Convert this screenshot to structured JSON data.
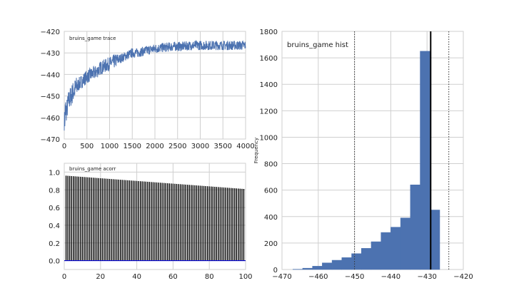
{
  "chart_data": [
    {
      "type": "line",
      "title": "bruins_game trace",
      "xlim": [
        0,
        4000
      ],
      "ylim": [
        -470,
        -420
      ],
      "grid": true,
      "x_ticks": [
        0,
        500,
        1000,
        1500,
        2000,
        2500,
        3000,
        3500,
        4000
      ],
      "y_ticks": [
        -420,
        -430,
        -440,
        -450,
        -460,
        -470
      ],
      "series": [
        {
          "values_x": [
            0,
            50,
            100,
            200,
            300,
            400,
            500,
            600,
            700,
            800,
            900,
            1000,
            1100,
            1200,
            1300,
            1400,
            1500,
            1600,
            1700,
            1800,
            1900,
            2000,
            2200,
            2400,
            2600,
            2800,
            3000,
            3200,
            3400,
            3600,
            3800,
            4000
          ],
          "values_y": [
            -455,
            -457,
            -452,
            -448,
            -445,
            -443,
            -441,
            -440,
            -439,
            -437,
            -436,
            -435,
            -434,
            -433,
            -432,
            -431,
            -430,
            -430,
            -429.5,
            -429,
            -428.5,
            -428,
            -427.5,
            -427,
            -427,
            -426.5,
            -426.5,
            -426.5,
            -426.5,
            -426.5,
            -426.5,
            -426.5
          ]
        }
      ],
      "color": "#4c72b0"
    },
    {
      "type": "bar",
      "title": "bruins_game acorr",
      "xlim": [
        0,
        100
      ],
      "ylim": [
        -0.1,
        1.1
      ],
      "grid": true,
      "x_ticks": [
        0,
        20,
        40,
        60,
        80,
        100
      ],
      "y_ticks": [
        0.0,
        0.2,
        0.4,
        0.6,
        0.8,
        1.0
      ],
      "lags_start": 1,
      "lags_end": 99,
      "first_value": 0.96,
      "last_value": 0.81,
      "baseline_color": "#0000cc"
    },
    {
      "type": "bar",
      "title": "bruins_game hist",
      "ylabel": "Frequency",
      "xlim": [
        -470,
        -420
      ],
      "ylim": [
        0,
        1800
      ],
      "grid": true,
      "x_ticks": [
        -470,
        -460,
        -450,
        -440,
        -430,
        -420
      ],
      "y_ticks": [
        0,
        200,
        400,
        600,
        800,
        1000,
        1200,
        1400,
        1600,
        1800
      ],
      "bin_edges": [
        -467,
        -464.3,
        -461.6,
        -458.9,
        -456.2,
        -453.5,
        -450.8,
        -448.1,
        -445.4,
        -442.7,
        -440,
        -437.3,
        -434.6,
        -431.9,
        -429.2,
        -426.5,
        -423.8
      ],
      "counts": [
        2,
        10,
        25,
        50,
        70,
        90,
        120,
        160,
        210,
        280,
        320,
        390,
        640,
        1650,
        450,
        0
      ],
      "mean_line": -429,
      "interval_lines": [
        -450,
        -424
      ],
      "color": "#4c72b0"
    }
  ]
}
